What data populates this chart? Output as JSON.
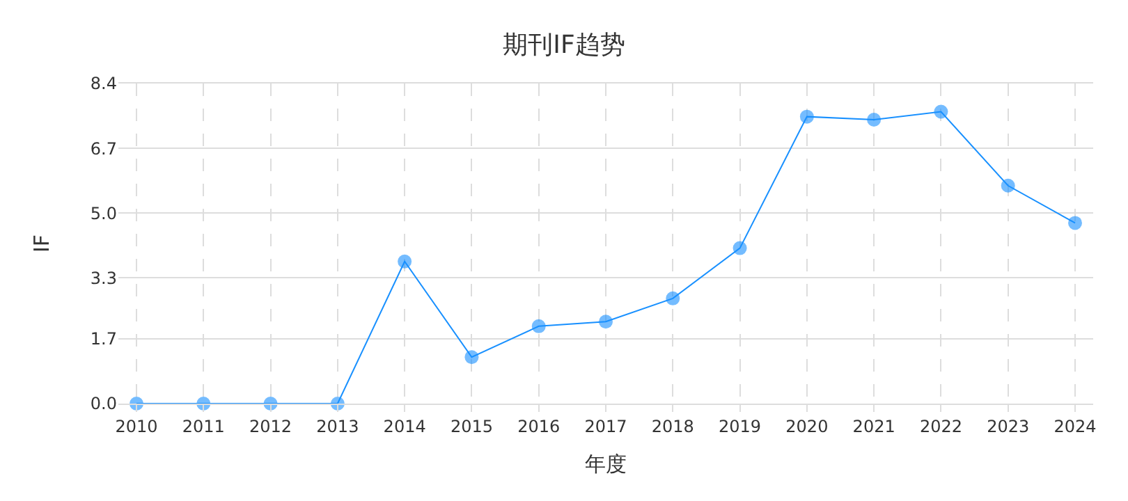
{
  "chart_data": {
    "type": "line",
    "title": "期刊IF趋势",
    "xlabel": "年度",
    "ylabel": "IF",
    "categories": [
      "2010",
      "2011",
      "2012",
      "2013",
      "2014",
      "2015",
      "2016",
      "2017",
      "2018",
      "2019",
      "2020",
      "2021",
      "2022",
      "2023",
      "2024"
    ],
    "series": [
      {
        "color": "#1890ff",
        "values": [
          0,
          0,
          0,
          0,
          3.73,
          1.22,
          2.03,
          2.15,
          2.76,
          4.08,
          7.53,
          7.45,
          7.66,
          5.72,
          4.74
        ]
      }
    ],
    "ylim": [
      0,
      8.4
    ],
    "yticks": [
      {
        "value": 0,
        "label": "0.0"
      },
      1.7,
      3.3,
      {
        "value": 5,
        "label": "5.0"
      },
      6.7,
      8.4
    ],
    "grid": true,
    "marker": "circle",
    "line_style": "solid"
  }
}
